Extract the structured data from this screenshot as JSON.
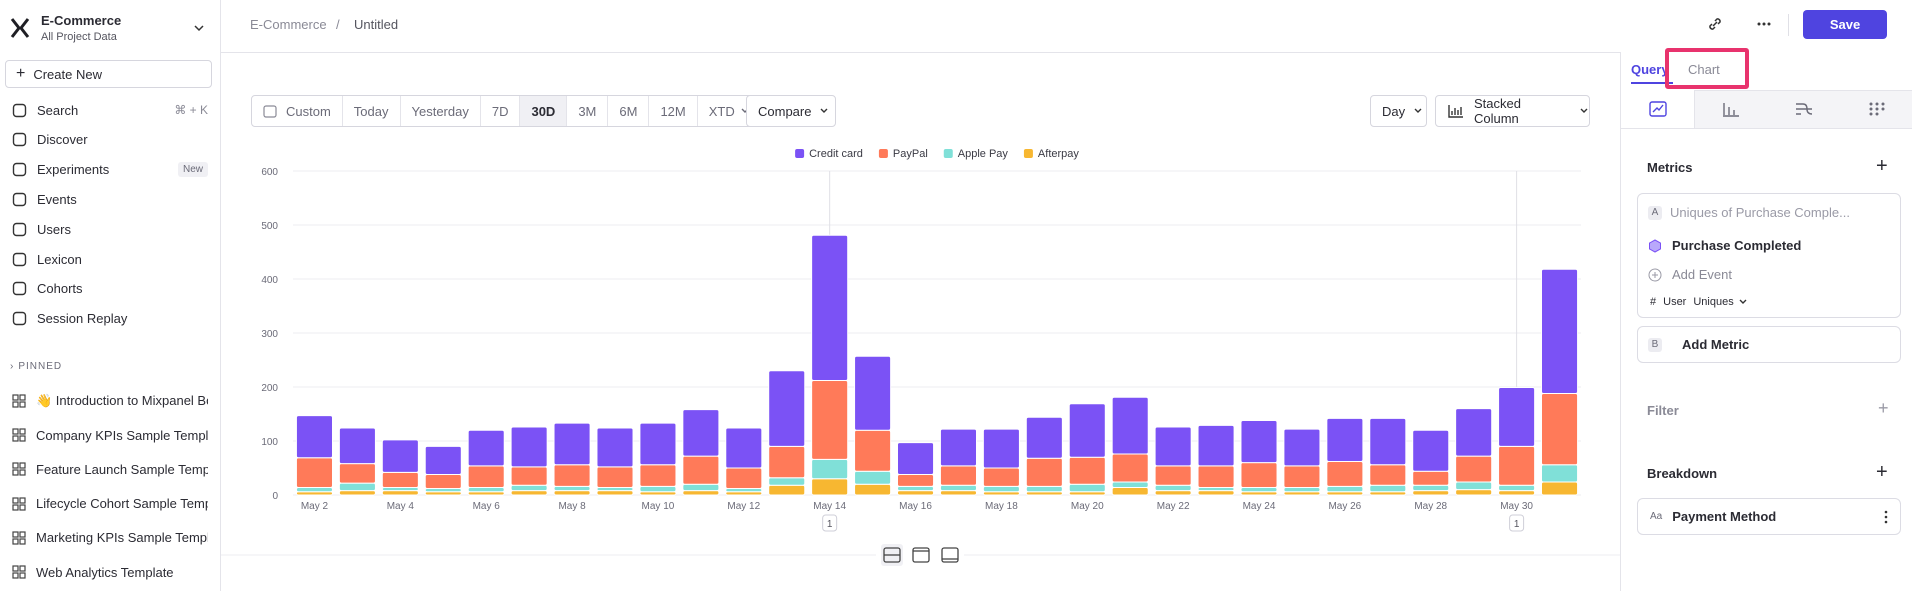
{
  "workspace": {
    "name": "E-Commerce",
    "subtitle": "All Project Data"
  },
  "sidebar": {
    "create": "Create New",
    "nav": [
      {
        "label": "Search",
        "shortcut": "⌘ + K"
      },
      {
        "label": "Discover"
      },
      {
        "label": "Experiments",
        "badge": "New"
      },
      {
        "label": "Events"
      },
      {
        "label": "Users"
      },
      {
        "label": "Lexicon"
      },
      {
        "label": "Cohorts"
      },
      {
        "label": "Session Replay"
      }
    ],
    "pinned_heading": "PINNED",
    "pinned": [
      "👋 Introduction to Mixpanel Bo",
      "Company KPIs Sample Templat",
      "Feature Launch Sample Templa",
      "Lifecycle Cohort Sample Temp",
      "Marketing KPIs Sample Templat",
      "Web Analytics Template"
    ]
  },
  "breadcrumb": [
    "E-Commerce",
    "Untitled"
  ],
  "save": "Save",
  "toolbar": {
    "ranges": [
      "Custom",
      "Today",
      "Yesterday",
      "7D",
      "30D",
      "3M",
      "6M",
      "12M",
      "XTD"
    ],
    "selected": "30D",
    "compare": "Compare",
    "interval": "Day",
    "chart_type": "Stacked Column"
  },
  "panel": {
    "tabs": [
      "Query",
      "Chart"
    ],
    "metrics_heading": "Metrics",
    "metric_a": {
      "letter": "A",
      "placeholder": "Uniques of Purchase Comple...",
      "event": "Purchase Completed",
      "add_event": "Add Event",
      "hash": "#",
      "user": "User",
      "uniques": "Uniques"
    },
    "metric_b": {
      "letter": "B",
      "label": "Add Metric"
    },
    "filter": "Filter",
    "breakdown": "Breakdown",
    "breakdown_item": {
      "icon": "Aa",
      "label": "Payment Method"
    }
  },
  "chart_data": {
    "type": "bar",
    "stacked": true,
    "categories": [
      "May 2",
      null,
      "May 4",
      null,
      "May 6",
      null,
      "May 8",
      null,
      "May 10",
      null,
      "May 12",
      null,
      "May 14",
      null,
      "May 16",
      null,
      "May 18",
      null,
      "May 20",
      null,
      "May 22",
      null,
      "May 24",
      null,
      "May 26",
      null,
      "May 28",
      null,
      "May 30",
      null
    ],
    "series": [
      {
        "name": "Credit card",
        "color": "#7b52f5",
        "values": [
          78,
          66,
          60,
          52,
          66,
          74,
          77,
          72,
          77,
          86,
          74,
          140,
          269,
          137,
          59,
          68,
          72,
          76,
          99,
          105,
          72,
          75,
          78,
          68,
          80,
          86,
          76,
          88,
          109,
          230
        ]
      },
      {
        "name": "PayPal",
        "color": "#ff7a59",
        "values": [
          55,
          36,
          28,
          26,
          40,
          34,
          40,
          38,
          40,
          52,
          38,
          58,
          146,
          76,
          22,
          36,
          34,
          52,
          50,
          52,
          36,
          40,
          46,
          40,
          46,
          38,
          26,
          48,
          72,
          132
        ]
      },
      {
        "name": "Apple Pay",
        "color": "#80e0d8",
        "values": [
          8,
          14,
          6,
          6,
          8,
          10,
          8,
          6,
          10,
          12,
          6,
          14,
          36,
          24,
          8,
          10,
          10,
          10,
          14,
          10,
          10,
          6,
          8,
          8,
          10,
          12,
          10,
          14,
          10,
          32
        ]
      },
      {
        "name": "Afterpay",
        "color": "#f7b731",
        "values": [
          6,
          8,
          8,
          6,
          6,
          8,
          8,
          8,
          6,
          8,
          6,
          18,
          30,
          20,
          8,
          8,
          6,
          6,
          6,
          14,
          8,
          8,
          6,
          6,
          6,
          6,
          8,
          10,
          8,
          24
        ]
      }
    ],
    "ylim": [
      0,
      600
    ],
    "yticks": [
      0,
      100,
      200,
      300,
      400,
      500,
      600
    ],
    "grid": true,
    "annotations": [
      {
        "category": "May 14",
        "label": "1"
      },
      {
        "category": "May 30",
        "label": "1"
      }
    ]
  }
}
